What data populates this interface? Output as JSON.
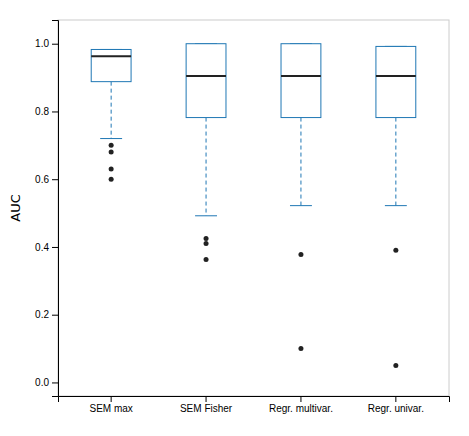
{
  "chart_data": {
    "type": "box",
    "categories": [
      "SEM max",
      "SEM Fisher",
      "Regr. multivar.",
      "Regr. univar."
    ],
    "ylabel": "AUC",
    "ylim": [
      -0.04,
      1.07
    ],
    "yticks": [
      {
        "value": 0.0,
        "label": "0.0"
      },
      0.2,
      0.4,
      0.6,
      0.8,
      {
        "value": 1.0,
        "label": "1.0"
      }
    ],
    "grid": false,
    "line_style": "dashed",
    "boxes": [
      {
        "q1": 0.888,
        "median": 0.963,
        "q3": 0.983,
        "whisker_low": 0.72,
        "whisker_high": 0.983,
        "fliers": [
          0.6,
          0.63,
          0.68,
          0.7
        ]
      },
      {
        "q1": 0.782,
        "median": 0.905,
        "q3": 1.0,
        "whisker_low": 0.492,
        "whisker_high": 1.0,
        "fliers": [
          0.363,
          0.41,
          0.425
        ]
      },
      {
        "q1": 0.782,
        "median": 0.905,
        "q3": 1.0,
        "whisker_low": 0.522,
        "whisker_high": 1.0,
        "fliers": [
          0.1,
          0.378
        ]
      },
      {
        "q1": 0.782,
        "median": 0.905,
        "q3": 0.992,
        "whisker_low": 0.522,
        "whisker_high": 0.992,
        "fliers": [
          0.05,
          0.39
        ]
      }
    ]
  }
}
